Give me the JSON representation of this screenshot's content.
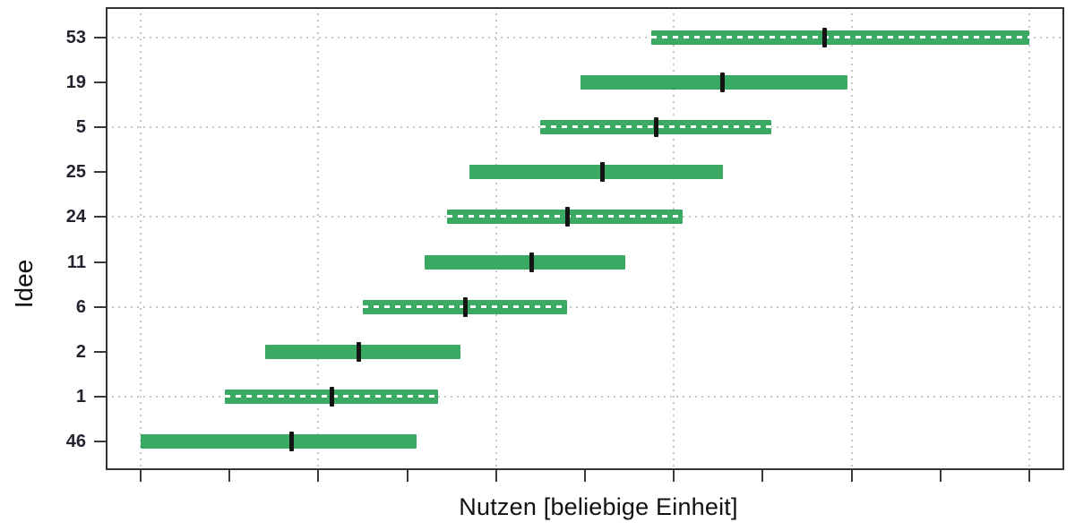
{
  "chart_data": {
    "type": "bar",
    "variant": "horizontal-range-bars",
    "xlabel": "Nutzen [beliebige Einheit]",
    "ylabel": "Idee",
    "x_ticks": [
      0,
      1,
      2,
      3,
      4,
      5,
      6,
      7,
      8,
      9,
      10
    ],
    "x_tick_labels_visible": false,
    "xlim": [
      -0.4,
      10.4
    ],
    "bars": [
      {
        "label": "53",
        "from": 5.75,
        "to": 10.0,
        "mark": 7.7
      },
      {
        "label": "19",
        "from": 4.95,
        "to": 7.95,
        "mark": 6.55
      },
      {
        "label": "5",
        "from": 4.5,
        "to": 7.1,
        "mark": 5.8
      },
      {
        "label": "25",
        "from": 3.7,
        "to": 6.55,
        "mark": 5.2
      },
      {
        "label": "24",
        "from": 3.45,
        "to": 6.1,
        "mark": 4.8
      },
      {
        "label": "11",
        "from": 3.2,
        "to": 5.45,
        "mark": 4.4
      },
      {
        "label": "6",
        "from": 2.5,
        "to": 4.8,
        "mark": 3.65
      },
      {
        "label": "2",
        "from": 1.4,
        "to": 3.6,
        "mark": 2.45
      },
      {
        "label": "1",
        "from": 0.95,
        "to": 3.35,
        "mark": 2.15
      },
      {
        "label": "46",
        "from": 0.0,
        "to": 3.1,
        "mark": 1.7
      }
    ],
    "grid": {
      "vertical_at_ticks": [
        0,
        2,
        4,
        6,
        8,
        10
      ],
      "horizontal_at_row_indices": [
        0,
        2,
        4,
        6,
        8
      ]
    },
    "legend": "none",
    "colors": {
      "bar": "#3aa964",
      "marker": "#141414",
      "bar_centerline": "#ffffff",
      "gridline": "#c7c7c7",
      "axis_frame": "#333333",
      "text": "#23242f"
    }
  }
}
